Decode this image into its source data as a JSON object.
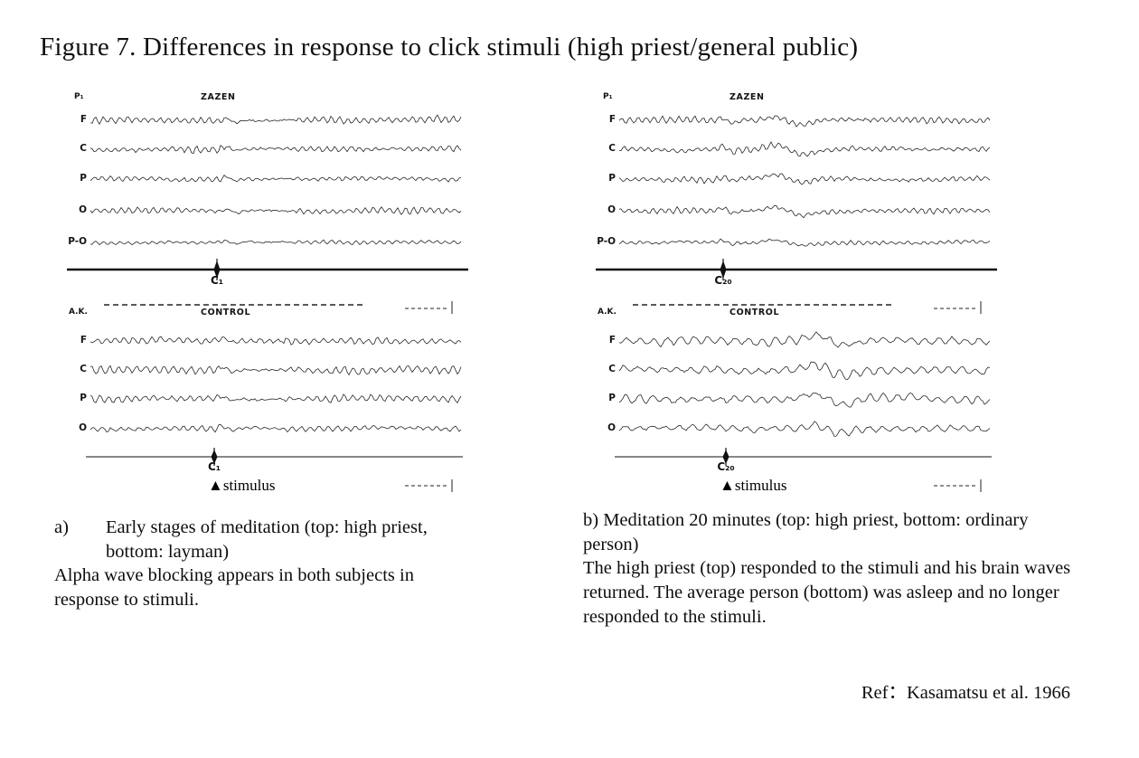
{
  "title": "Figure 7. Differences in response to click stimuli (high priest/general public)",
  "panels": [
    {
      "id": "a",
      "top": {
        "subject": "P₁",
        "condition": "ZAZEN",
        "channels": [
          "F",
          "C",
          "P",
          "O",
          "P-O"
        ],
        "marker": "C₁"
      },
      "bottom": {
        "subject": "A.K.",
        "condition": "CONTROL",
        "channels": [
          "F",
          "C",
          "P",
          "O"
        ],
        "marker": "C₁"
      },
      "stimulus_label": "▲stimulus"
    },
    {
      "id": "b",
      "top": {
        "subject": "P₁",
        "condition": "ZAZEN",
        "channels": [
          "F",
          "C",
          "P",
          "O",
          "P-O"
        ],
        "marker": "C₂₀"
      },
      "bottom": {
        "subject": "A.K.",
        "condition": "CONTROL",
        "channels": [
          "F",
          "C",
          "P",
          "O"
        ],
        "marker": "C₂₀"
      },
      "stimulus_label": "▲stimulus"
    }
  ],
  "captions": {
    "a": {
      "label": "a)",
      "heading": "Early stages of meditation (top: high priest, bottom: layman)",
      "body": "Alpha wave blocking appears in both subjects in response to stimuli."
    },
    "b": {
      "label": "b)",
      "heading": "Meditation 20 minutes (top: high priest, bottom: ordinary person)",
      "body": "The high priest (top) responded to the stimuli and his brain waves returned. The average person (bottom) was asleep and no longer responded to the stimuli."
    }
  },
  "reference": "Ref：Kasamatsu et al. 1966",
  "colors": {
    "ink": "#111111",
    "background": "#ffffff"
  }
}
